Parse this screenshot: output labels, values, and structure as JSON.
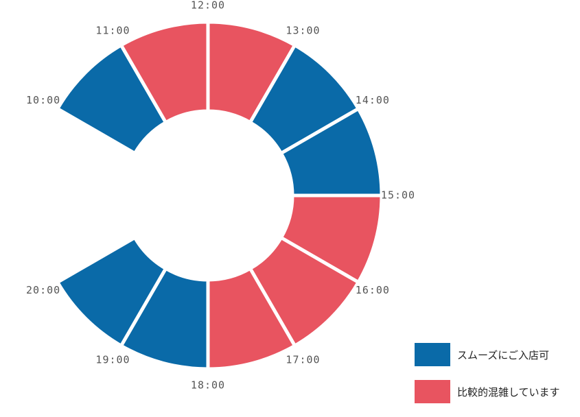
{
  "chart_data": {
    "type": "pie",
    "variant": "donut-clock",
    "title": "",
    "categories": [
      "10:00",
      "11:00",
      "12:00",
      "13:00",
      "14:00",
      "15:00",
      "16:00",
      "17:00",
      "18:00",
      "19:00",
      "20:00"
    ],
    "segments": [
      {
        "start": "10:00",
        "end": "11:00",
        "status": "smooth"
      },
      {
        "start": "11:00",
        "end": "12:00",
        "status": "busy"
      },
      {
        "start": "12:00",
        "end": "13:00",
        "status": "busy"
      },
      {
        "start": "13:00",
        "end": "14:00",
        "status": "smooth"
      },
      {
        "start": "14:00",
        "end": "15:00",
        "status": "smooth"
      },
      {
        "start": "15:00",
        "end": "16:00",
        "status": "busy"
      },
      {
        "start": "16:00",
        "end": "17:00",
        "status": "busy"
      },
      {
        "start": "17:00",
        "end": "18:00",
        "status": "busy"
      },
      {
        "start": "18:00",
        "end": "19:00",
        "status": "smooth"
      },
      {
        "start": "19:00",
        "end": "20:00",
        "status": "smooth"
      }
    ],
    "colors": {
      "smooth": "#0a6aa8",
      "busy": "#e85460"
    },
    "legend": [
      {
        "key": "smooth",
        "label": "スムーズにご入店可"
      },
      {
        "key": "busy",
        "label": "比較的混雑しています"
      }
    ],
    "legend_position": "bottom-right"
  }
}
